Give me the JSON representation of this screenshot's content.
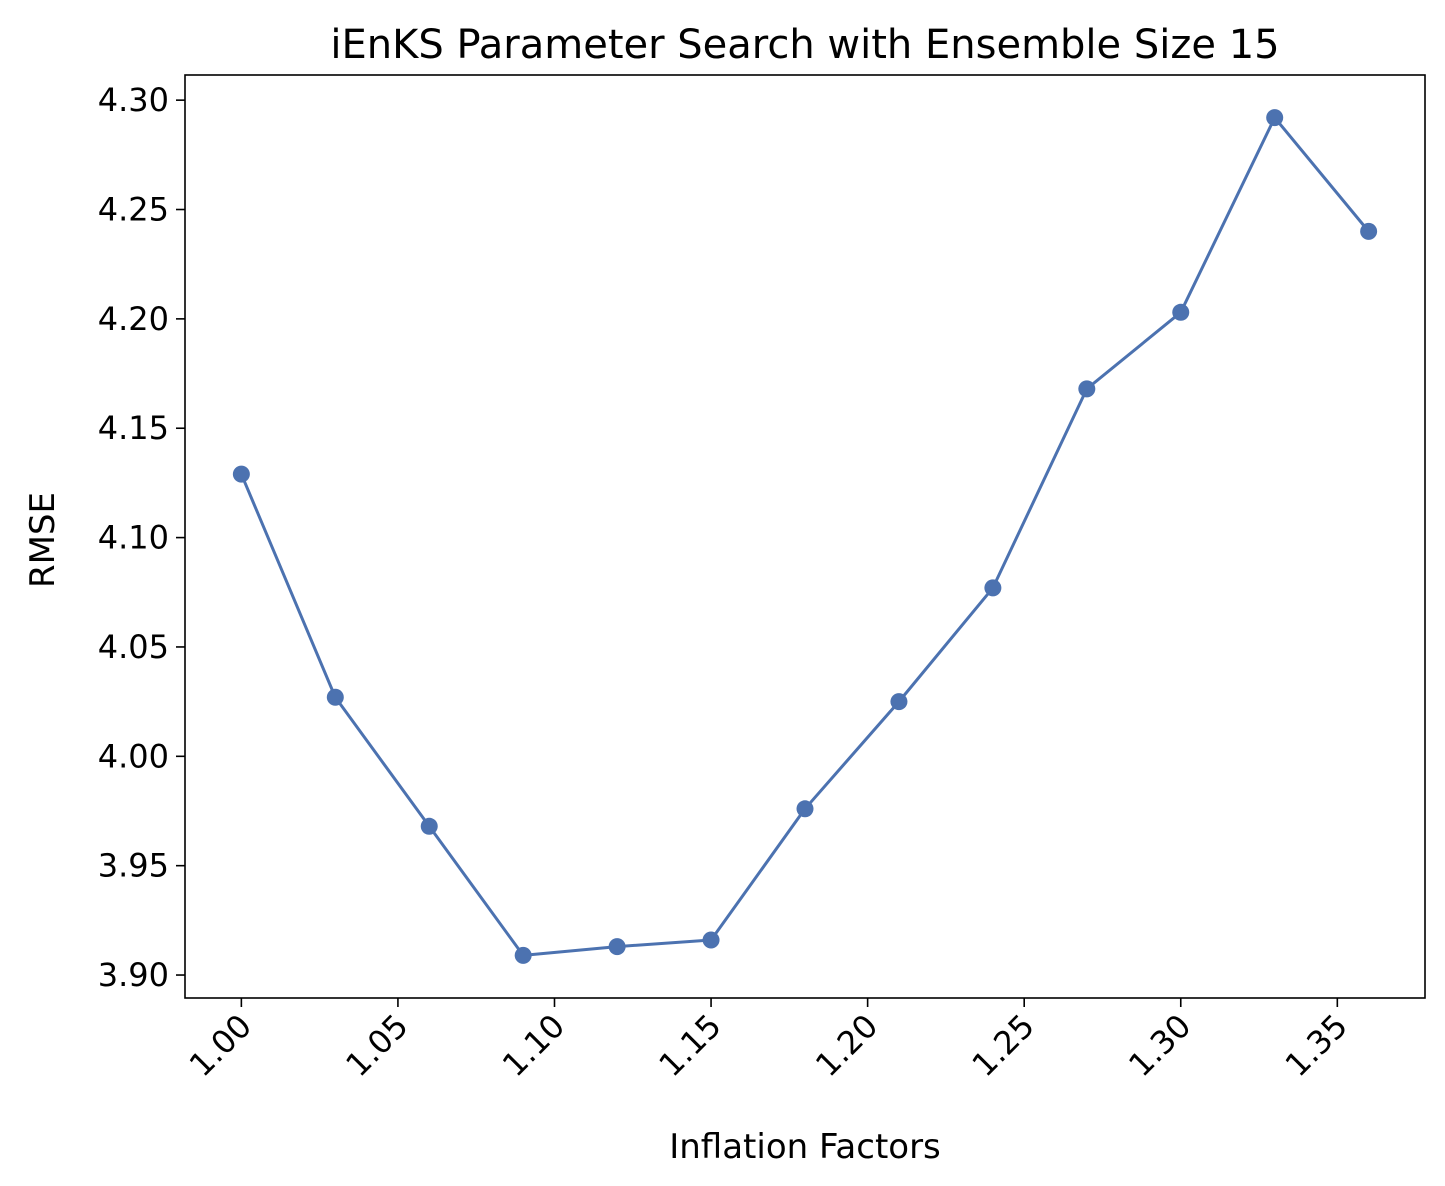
{
  "chart_data": {
    "type": "line",
    "title": "iEnKS Parameter Search with Ensemble Size 15",
    "xlabel": "Inflation Factors",
    "ylabel": "RMSE",
    "xlim": [
      0.982,
      1.378
    ],
    "ylim": [
      3.8895,
      4.3115
    ],
    "xticks": [
      1.0,
      1.05,
      1.1,
      1.15,
      1.2,
      1.25,
      1.3,
      1.35
    ],
    "xtick_labels": [
      "1.00",
      "1.05",
      "1.10",
      "1.15",
      "1.20",
      "1.25",
      "1.30",
      "1.35"
    ],
    "yticks": [
      3.9,
      3.95,
      4.0,
      4.05,
      4.1,
      4.15,
      4.2,
      4.25,
      4.3
    ],
    "ytick_labels": [
      "3.90",
      "3.95",
      "4.00",
      "4.05",
      "4.10",
      "4.15",
      "4.20",
      "4.25",
      "4.30"
    ],
    "grid": false,
    "color": "#4c72b0",
    "series": [
      {
        "x": [
          1.0,
          1.03,
          1.06,
          1.09,
          1.12,
          1.15,
          1.18,
          1.21,
          1.24,
          1.27,
          1.3,
          1.33,
          1.36
        ],
        "values": [
          4.129,
          4.027,
          3.968,
          3.909,
          3.913,
          3.916,
          3.976,
          4.025,
          4.077,
          4.168,
          4.203,
          4.292,
          4.24
        ]
      }
    ]
  }
}
